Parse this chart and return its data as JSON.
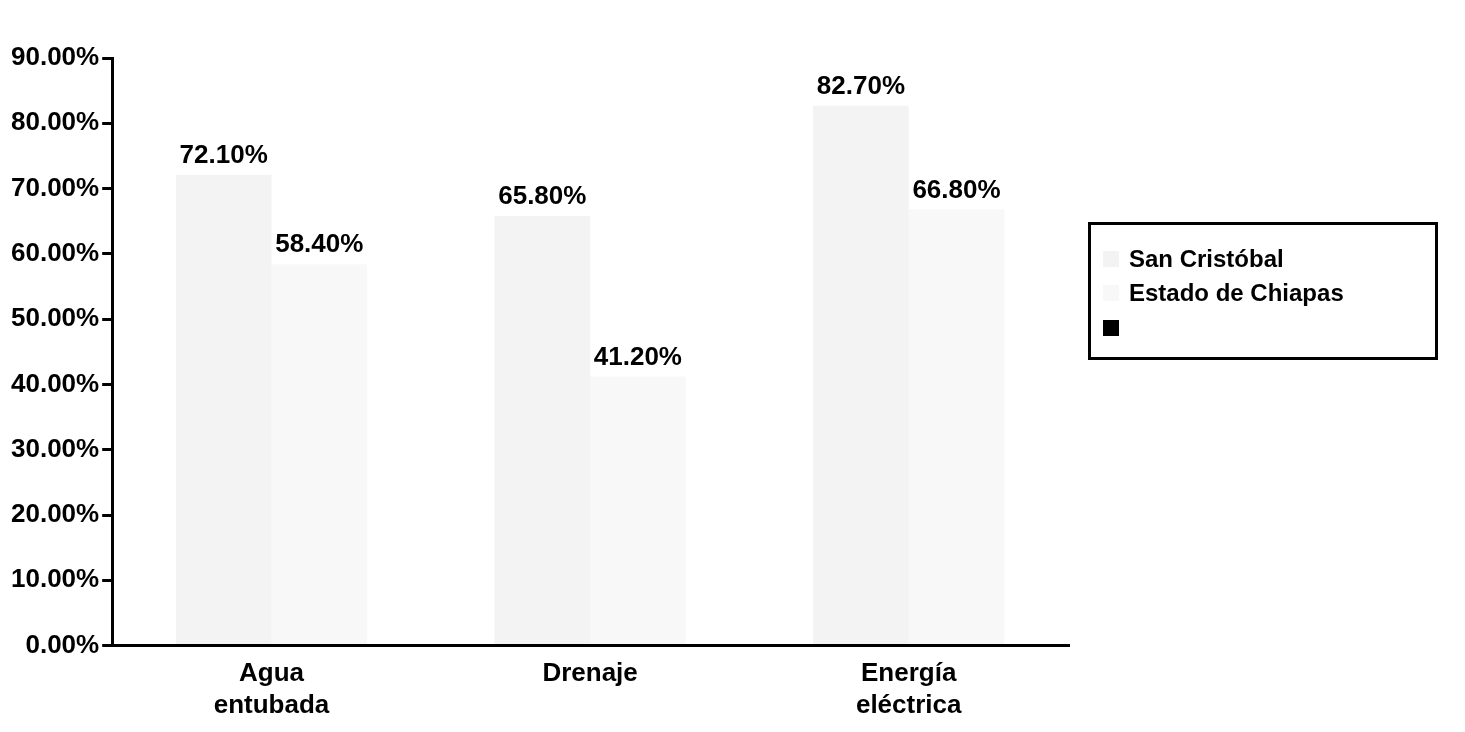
{
  "chart_data": {
    "type": "bar",
    "categories": [
      "Agua entubada",
      "Drenaje",
      "Energía eléctrica"
    ],
    "series": [
      {
        "name": "San Cristóbal",
        "color": "#f3f3f3",
        "values": [
          72.1,
          65.8,
          82.7
        ],
        "value_labels": [
          "72.10%",
          "65.80%",
          "82.70%"
        ]
      },
      {
        "name": "Estado de Chiapas",
        "color": "#f8f8f8",
        "values": [
          58.4,
          41.2,
          66.8
        ],
        "value_labels": [
          "58.40%",
          "41.20%",
          "66.80%"
        ]
      }
    ],
    "ylim": [
      0,
      90
    ],
    "yticks": [
      {
        "value": 0,
        "label": "0.00%"
      },
      {
        "value": 10,
        "label": "10.00%"
      },
      {
        "value": 20,
        "label": "20.00%"
      },
      {
        "value": 30,
        "label": "30.00%"
      },
      {
        "value": 40,
        "label": "40.00%"
      },
      {
        "value": 50,
        "label": "50.00%"
      },
      {
        "value": 60,
        "label": "60.00%"
      },
      {
        "value": 70,
        "label": "70.00%"
      },
      {
        "value": 80,
        "label": "80.00%"
      },
      {
        "value": 90,
        "label": "90.00%"
      }
    ],
    "grid": false,
    "legend": "right"
  }
}
